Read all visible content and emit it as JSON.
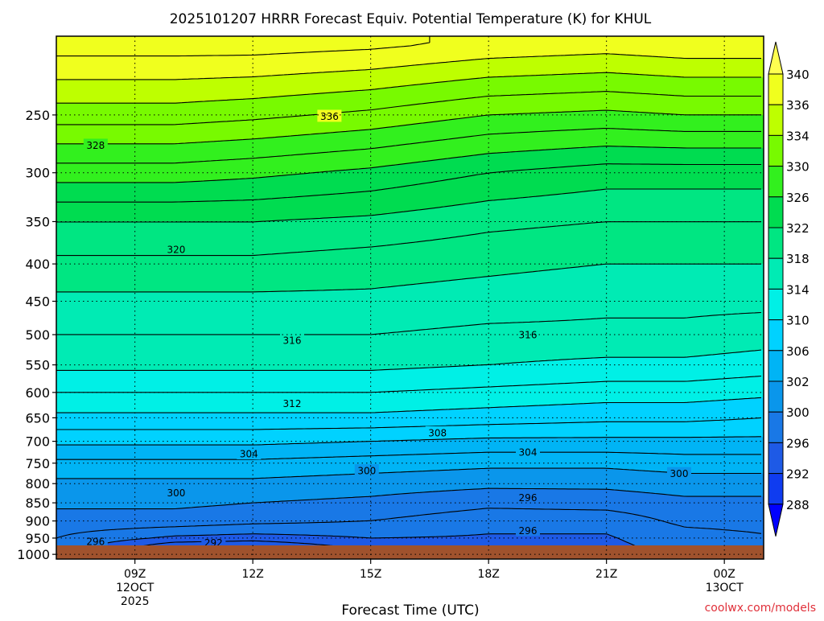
{
  "chart_data": {
    "type": "heatmap",
    "subtype": "time-height filled contour",
    "title": "2025101207 HRRR Forecast Equiv. Potential Temperature (K) for KHUL",
    "xlabel": "Forecast Time (UTC)",
    "credit": "coolwx.com/models",
    "x_ticks": [
      {
        "hour": 9,
        "lines": [
          "09Z",
          "12OCT",
          "2025"
        ]
      },
      {
        "hour": 12,
        "lines": [
          "12Z"
        ]
      },
      {
        "hour": 15,
        "lines": [
          "15Z"
        ]
      },
      {
        "hour": 18,
        "lines": [
          "18Z"
        ]
      },
      {
        "hour": 21,
        "lines": [
          "21Z"
        ]
      },
      {
        "hour": 24,
        "lines": [
          "00Z",
          "13OCT"
        ]
      }
    ],
    "xlim_hours": [
      7,
      25
    ],
    "y_axis": {
      "scale": "log-pressure",
      "reversed": true,
      "ylim_hpa": [
        1015,
        195
      ]
    },
    "y_ticks_hpa": [
      250,
      300,
      350,
      400,
      450,
      500,
      550,
      600,
      650,
      700,
      750,
      800,
      850,
      900,
      950,
      1000
    ],
    "surface_band_color": "#a0522d",
    "colorbar": {
      "labels": [
        "340",
        "336",
        "334",
        "330",
        "326",
        "322",
        "318",
        "314",
        "310",
        "306",
        "302",
        "300",
        "296",
        "292",
        "288"
      ],
      "levels": [
        288,
        292,
        296,
        300,
        302,
        306,
        310,
        314,
        318,
        322,
        326,
        330,
        334,
        336,
        340
      ],
      "colors": [
        "#0000ff",
        "#0f3cf0",
        "#1e5ae6",
        "#1978e6",
        "#0a96eb",
        "#00b4f5",
        "#00d2ff",
        "#00f0e6",
        "#00ebb4",
        "#00e682",
        "#00dc50",
        "#32f01e",
        "#78fa00",
        "#beff00",
        "#f0ff1e",
        "#ffff50"
      ],
      "extend": "both"
    },
    "profiles": [
      {
        "hour": 7,
        "p": [
          1000,
          975,
          950,
          925,
          900,
          850,
          800,
          750,
          700,
          650,
          600,
          550,
          500,
          450,
          400,
          350,
          300,
          250,
          200
        ],
        "theta_e": [
          297,
          297.5,
          298,
          298.5,
          299,
          300.5,
          301.5,
          303.5,
          306.5,
          309.5,
          312,
          314.5,
          316,
          317.5,
          319.5,
          322,
          327,
          333,
          339
        ]
      },
      {
        "hour": 10,
        "p": [
          1000,
          975,
          950,
          925,
          900,
          850,
          800,
          750,
          700,
          650,
          600,
          550,
          500,
          450,
          400,
          350,
          300,
          250,
          200
        ],
        "theta_e": [
          290.8,
          292.5,
          295.5,
          297.5,
          299,
          300.5,
          301.5,
          303.5,
          306.5,
          309.5,
          312,
          314.5,
          316,
          317.5,
          319.5,
          322,
          327,
          333,
          339
        ]
      },
      {
        "hour": 12,
        "p": [
          1000,
          975,
          950,
          925,
          900,
          850,
          800,
          750,
          700,
          650,
          600,
          550,
          500,
          450,
          400,
          350,
          300,
          250,
          200
        ],
        "theta_e": [
          289.8,
          292,
          295,
          297,
          298.5,
          300,
          301.5,
          303.5,
          306.5,
          309.5,
          312,
          314.5,
          316,
          317.5,
          319.5,
          322,
          326.5,
          332.5,
          339
        ]
      },
      {
        "hour": 15,
        "p": [
          1000,
          975,
          950,
          925,
          900,
          850,
          800,
          750,
          700,
          650,
          600,
          550,
          500,
          450,
          400,
          350,
          300,
          250,
          200
        ],
        "theta_e": [
          293,
          294.8,
          296,
          297,
          298,
          299.5,
          301,
          303,
          306,
          309.5,
          312,
          314.5,
          316,
          317.5,
          319,
          321.5,
          325.5,
          331.5,
          338.5
        ]
      },
      {
        "hour": 18,
        "p": [
          1000,
          975,
          950,
          925,
          900,
          850,
          800,
          750,
          700,
          650,
          600,
          550,
          500,
          450,
          400,
          350,
          300,
          250,
          200
        ],
        "theta_e": [
          295.3,
          295.5,
          295.8,
          296.2,
          296.8,
          298.5,
          300.5,
          302.5,
          305.5,
          309,
          311.5,
          314,
          315.5,
          317,
          318.5,
          320.5,
          324,
          330,
          337.5
        ]
      },
      {
        "hour": 21,
        "p": [
          1000,
          975,
          950,
          925,
          900,
          850,
          800,
          750,
          700,
          650,
          600,
          550,
          500,
          450,
          400,
          350,
          300,
          250,
          200
        ],
        "theta_e": [
          295.3,
          295.5,
          295.8,
          296.2,
          296.8,
          298.8,
          300.5,
          302.5,
          305.5,
          308.5,
          311,
          313.5,
          315.5,
          316.5,
          318,
          320,
          323,
          329.5,
          337
        ]
      },
      {
        "hour": 23,
        "p": [
          1000,
          975,
          950,
          925,
          900,
          850,
          800,
          750,
          700,
          650,
          600,
          550,
          500,
          450,
          400,
          350,
          300,
          250,
          200
        ],
        "theta_e": [
          296.5,
          296.8,
          297.2,
          297.8,
          298.5,
          299.5,
          301,
          303,
          305.5,
          308.5,
          311,
          313.5,
          315.5,
          316.5,
          318,
          320,
          323,
          330,
          337.5
        ]
      },
      {
        "hour": 25,
        "p": [
          1000,
          975,
          950,
          925,
          900,
          850,
          800,
          750,
          700,
          650,
          600,
          550,
          500,
          450,
          400,
          350,
          300,
          250,
          200
        ],
        "theta_e": [
          297,
          297.3,
          297.8,
          298.2,
          298.8,
          299.5,
          301,
          303,
          305.5,
          308,
          310.5,
          313,
          315,
          316.5,
          318,
          320,
          323,
          330,
          337.5
        ]
      }
    ],
    "contour_interval": 2,
    "contour_labels": [
      {
        "value": "336",
        "hour": 13.95,
        "p": 251
      },
      {
        "value": "328",
        "hour": 8.0,
        "p": 275
      },
      {
        "value": "320",
        "hour": 10.05,
        "p": 382
      },
      {
        "value": "316",
        "hour": 13.0,
        "p": 509
      },
      {
        "value": "316",
        "hour": 19.0,
        "p": 500
      },
      {
        "value": "312",
        "hour": 13.0,
        "p": 621
      },
      {
        "value": "308",
        "hour": 16.7,
        "p": 681
      },
      {
        "value": "304",
        "hour": 11.9,
        "p": 728
      },
      {
        "value": "304",
        "hour": 19.0,
        "p": 724
      },
      {
        "value": "300",
        "hour": 14.9,
        "p": 768
      },
      {
        "value": "300",
        "hour": 22.85,
        "p": 775
      },
      {
        "value": "300",
        "hour": 10.05,
        "p": 823
      },
      {
        "value": "296",
        "hour": 19.0,
        "p": 836
      },
      {
        "value": "296",
        "hour": 19.0,
        "p": 927
      },
      {
        "value": "296",
        "hour": 8.0,
        "p": 960
      },
      {
        "value": "292",
        "hour": 11.0,
        "p": 963
      }
    ]
  }
}
